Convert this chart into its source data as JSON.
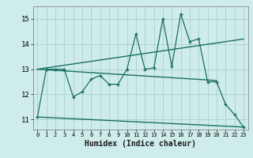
{
  "xlabel": "Humidex (Indice chaleur)",
  "background_color": "#ceecea",
  "grid_color": "#aed4d2",
  "line_color": "#1a6e64",
  "xlim": [
    -0.5,
    23.5
  ],
  "ylim": [
    10.6,
    15.5
  ],
  "ytick_values": [
    11,
    12,
    13,
    14,
    15
  ],
  "series": {
    "data": {
      "x": [
        0,
        1,
        2,
        3,
        4,
        5,
        6,
        7,
        8,
        9,
        10,
        11,
        12,
        13,
        14,
        15,
        16,
        17,
        18,
        19,
        20,
        21,
        22,
        23
      ],
      "y": [
        11.1,
        13.0,
        13.0,
        13.0,
        11.9,
        12.1,
        12.6,
        12.75,
        12.4,
        12.4,
        13.0,
        14.4,
        13.0,
        13.05,
        15.0,
        13.1,
        15.2,
        14.1,
        14.2,
        12.5,
        12.5,
        11.6,
        11.2,
        10.7
      ]
    },
    "trend_upper": {
      "x": [
        0,
        23
      ],
      "y": [
        13.0,
        14.2
      ]
    },
    "trend_mid": {
      "x": [
        0,
        20
      ],
      "y": [
        13.0,
        12.55
      ]
    },
    "trend_lower": {
      "x": [
        0,
        23
      ],
      "y": [
        11.1,
        10.7
      ]
    }
  }
}
